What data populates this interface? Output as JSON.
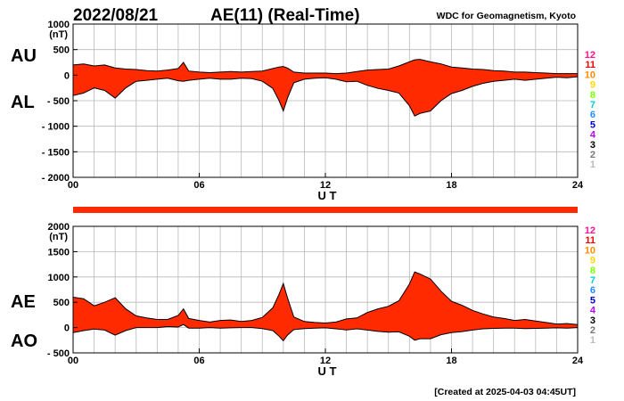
{
  "header": {
    "date": "2022/08/21",
    "title": "AE(11) (Real-Time)",
    "source": "WDC for Geomagnetism, Kyoto"
  },
  "footer": {
    "created": "[Created at 2025-04-03 04:45UT]"
  },
  "colors": {
    "fill": "#ff2a00",
    "grid": "#b9b9b9",
    "axis": "#000000",
    "bar": "#ff2a00"
  },
  "station_counts": [
    {
      "label": "12",
      "color": "#ff1493"
    },
    {
      "label": "11",
      "color": "#ff0000"
    },
    {
      "label": "10",
      "color": "#ff8c00"
    },
    {
      "label": "9",
      "color": "#ffd700"
    },
    {
      "label": "8",
      "color": "#7fff00"
    },
    {
      "label": "7",
      "color": "#00ced1"
    },
    {
      "label": "6",
      "color": "#1e90ff"
    },
    {
      "label": "5",
      "color": "#0000cd"
    },
    {
      "label": "4",
      "color": "#c000ff"
    },
    {
      "label": "3",
      "color": "#000000"
    },
    {
      "label": "2",
      "color": "#777777"
    },
    {
      "label": "1",
      "color": "#bbbbbb"
    }
  ],
  "chart_data": [
    {
      "type": "area",
      "name": "AU-AL",
      "series_labels": [
        "AU",
        "AL"
      ],
      "unit": "(nT)",
      "xlabel": "U T",
      "xlim": [
        0,
        24
      ],
      "x_ticks": [
        "00",
        "06",
        "12",
        "18",
        "24"
      ],
      "x_tick_values": [
        0,
        6,
        12,
        18,
        24
      ],
      "ylim": [
        -2000,
        1000
      ],
      "y_ticks": [
        "1000",
        "500",
        "0",
        "- 500",
        "- 1000",
        "- 1500",
        "- 2000"
      ],
      "y_tick_values": [
        1000,
        500,
        0,
        -500,
        -1000,
        -1500,
        -2000
      ],
      "grid": true,
      "x": [
        0,
        0.5,
        1,
        1.5,
        2,
        2.5,
        3,
        3.5,
        4,
        4.5,
        5,
        5.25,
        5.5,
        6,
        6.5,
        7,
        7.5,
        8,
        8.5,
        9,
        9.5,
        9.8,
        10,
        10.2,
        10.5,
        11,
        11.5,
        12,
        12.5,
        13,
        13.5,
        14,
        14.5,
        15,
        15.5,
        16,
        16.25,
        16.5,
        17,
        17.5,
        18,
        18.5,
        19,
        19.5,
        20,
        20.5,
        21,
        21.5,
        22,
        22.5,
        23,
        23.5,
        24
      ],
      "upper": [
        200,
        220,
        180,
        200,
        140,
        120,
        110,
        90,
        80,
        100,
        130,
        250,
        80,
        60,
        50,
        60,
        70,
        60,
        70,
        80,
        130,
        160,
        170,
        140,
        60,
        40,
        40,
        40,
        30,
        40,
        70,
        100,
        110,
        120,
        180,
        260,
        300,
        310,
        260,
        220,
        160,
        140,
        120,
        110,
        90,
        80,
        60,
        60,
        50,
        40,
        30,
        30,
        30
      ],
      "lower": [
        -400,
        -350,
        -250,
        -300,
        -450,
        -250,
        -120,
        -100,
        -80,
        -60,
        -110,
        -120,
        -100,
        -80,
        -60,
        -80,
        -80,
        -60,
        -70,
        -120,
        -260,
        -500,
        -700,
        -450,
        -150,
        -80,
        -60,
        -50,
        -80,
        -130,
        -120,
        -200,
        -260,
        -300,
        -350,
        -600,
        -800,
        -750,
        -700,
        -500,
        -360,
        -300,
        -220,
        -160,
        -120,
        -100,
        -80,
        -100,
        -80,
        -60,
        -40,
        -50,
        -30
      ]
    },
    {
      "type": "area",
      "name": "AE-AO",
      "series_labels": [
        "AE",
        "AO"
      ],
      "unit": "(nT)",
      "xlabel": "U T",
      "xlim": [
        0,
        24
      ],
      "x_ticks": [
        "00",
        "06",
        "12",
        "18",
        "24"
      ],
      "x_tick_values": [
        0,
        6,
        12,
        18,
        24
      ],
      "ylim": [
        -500,
        2000
      ],
      "y_ticks": [
        "2000",
        "1500",
        "1000",
        "500",
        "0",
        "- 500"
      ],
      "y_tick_values": [
        2000,
        1500,
        1000,
        500,
        0,
        -500
      ],
      "grid": true,
      "x": [
        0,
        0.5,
        1,
        1.5,
        2,
        2.5,
        3,
        3.5,
        4,
        4.5,
        5,
        5.25,
        5.5,
        6,
        6.5,
        7,
        7.5,
        8,
        8.5,
        9,
        9.5,
        9.8,
        10,
        10.2,
        10.5,
        11,
        11.5,
        12,
        12.5,
        13,
        13.5,
        14,
        14.5,
        15,
        15.5,
        16,
        16.25,
        16.5,
        17,
        17.5,
        18,
        18.5,
        19,
        19.5,
        20,
        20.5,
        21,
        21.5,
        22,
        22.5,
        23,
        23.5,
        24
      ],
      "upper": [
        600,
        570,
        430,
        500,
        590,
        370,
        230,
        190,
        160,
        160,
        240,
        370,
        180,
        140,
        110,
        140,
        150,
        120,
        140,
        200,
        390,
        660,
        870,
        590,
        210,
        120,
        100,
        90,
        110,
        170,
        190,
        300,
        370,
        420,
        530,
        860,
        1100,
        1060,
        960,
        720,
        520,
        440,
        340,
        270,
        210,
        180,
        140,
        160,
        130,
        100,
        70,
        80,
        60
      ],
      "lower": [
        -100,
        -60,
        -30,
        -50,
        -150,
        -60,
        0,
        0,
        0,
        20,
        10,
        60,
        -10,
        -10,
        0,
        -10,
        -5,
        0,
        0,
        -20,
        -60,
        -170,
        -260,
        -150,
        -40,
        -20,
        -10,
        -5,
        -25,
        -45,
        -25,
        -50,
        -75,
        -90,
        -85,
        -170,
        -250,
        -220,
        -220,
        -140,
        -100,
        -80,
        -50,
        -25,
        -15,
        -10,
        -10,
        -20,
        -15,
        -10,
        -5,
        -10,
        0
      ]
    }
  ]
}
